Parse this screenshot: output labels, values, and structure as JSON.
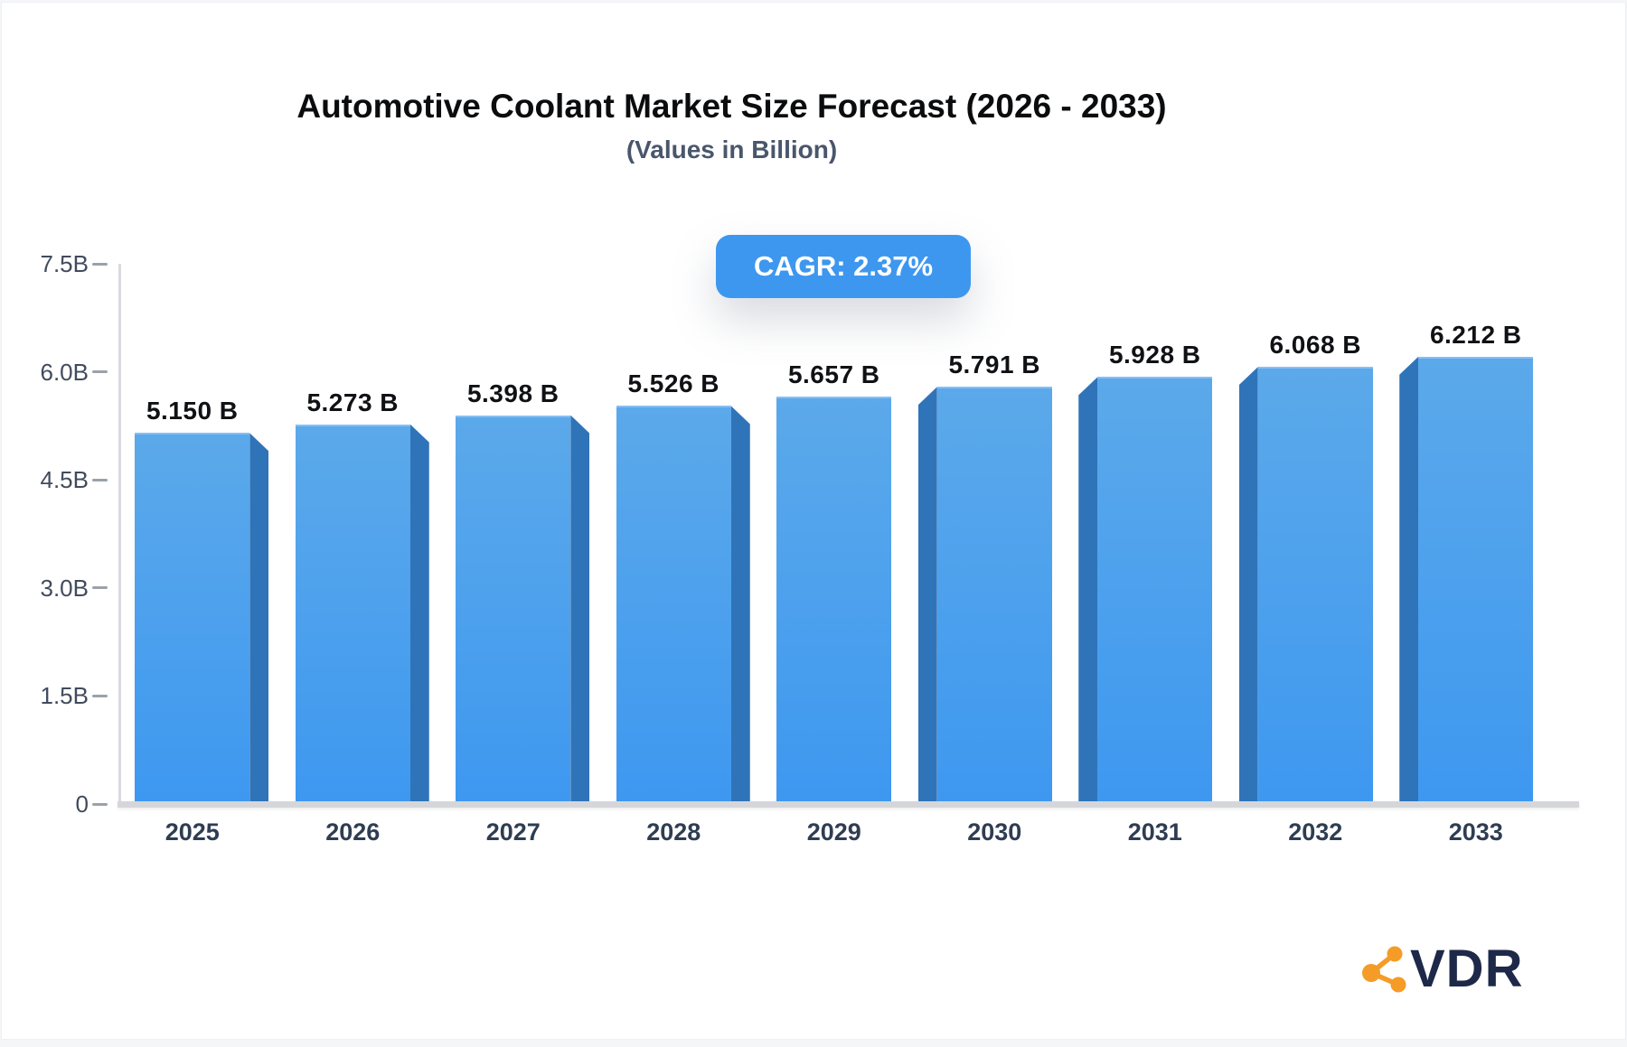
{
  "chart_data": {
    "type": "bar",
    "title": "Automotive Coolant Market Size Forecast (2026 - 2033)",
    "subtitle": "(Values in Billion)",
    "cagr": "CAGR: 2.37%",
    "categories": [
      "2025",
      "2026",
      "2027",
      "2028",
      "2029",
      "2030",
      "2031",
      "2032",
      "2033"
    ],
    "values": [
      5.15,
      5.273,
      5.398,
      5.526,
      5.657,
      5.791,
      5.928,
      6.068,
      6.212
    ],
    "value_labels": [
      "5.150 B",
      "5.273 B",
      "5.398 B",
      "5.526 B",
      "5.657 B",
      "5.791 B",
      "5.928 B",
      "6.068 B",
      "6.212 B"
    ],
    "xlabel": "",
    "ylabel": "",
    "ylim": [
      0,
      7.5
    ],
    "y_ticks": [
      {
        "label": "7.5B",
        "value": 7.5
      },
      {
        "label": "6.0B",
        "value": 6.0
      },
      {
        "label": "4.5B",
        "value": 4.5
      },
      {
        "label": "3.0B",
        "value": 3.0
      },
      {
        "label": "1.5B",
        "value": 1.5
      },
      {
        "label": "0",
        "value": 0
      }
    ],
    "grid": false,
    "legend": false,
    "colors": {
      "bar_top": "#5BA9EA",
      "bar_bottom": "#3E98F0",
      "bar_side": "#2F74B8",
      "badge_bg": "#3E97EF",
      "badge_text": "#FFFFFF"
    }
  },
  "logo": {
    "text": "VDR",
    "icon": "molecule-share-icon",
    "navy": "#1E2949",
    "orange": "#F59B27"
  }
}
